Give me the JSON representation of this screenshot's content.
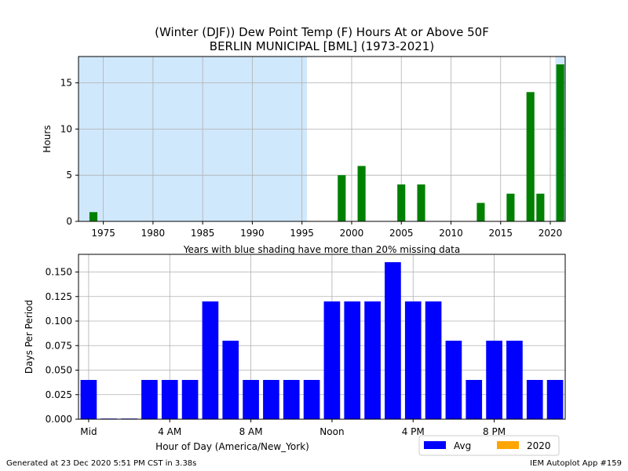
{
  "title": {
    "line1": "(Winter (DJF)) Dew Point Temp (F) Hours At or Above 50F",
    "line2": "BERLIN MUNICIPAL [BML] (1973-2021)"
  },
  "chart_data": [
    {
      "type": "bar",
      "title": "(Winter (DJF)) Dew Point Temp (F) Hours At or Above 50F / BERLIN MUNICIPAL [BML] (1973-2021)",
      "xlabel": "Years with blue shading have more than 20% missing data",
      "ylabel": "Hours",
      "xlim": [
        1972.5,
        2021.5
      ],
      "ylim": [
        0,
        17.85
      ],
      "xticks": [
        1975,
        1980,
        1985,
        1990,
        1995,
        2000,
        2005,
        2010,
        2015,
        2020
      ],
      "yticks": [
        0,
        5,
        10,
        15
      ],
      "grid": true,
      "bar_color": "#008000",
      "shade_color": "#d0e8fc",
      "missing_data_shading": [
        [
          1972.5,
          1995.5
        ],
        [
          2020.5,
          2021.5
        ]
      ],
      "x": [
        1974,
        1999,
        2001,
        2005,
        2007,
        2013,
        2016,
        2018,
        2019,
        2021
      ],
      "values": [
        1,
        5,
        6,
        4,
        4,
        2,
        3,
        14,
        3,
        17
      ]
    },
    {
      "type": "bar",
      "xlabel": "Hour of Day (America/New_York)",
      "ylabel": "Days Per Period",
      "xlim": [
        -0.5,
        23.5
      ],
      "ylim": [
        0,
        0.168
      ],
      "xticks": [
        {
          "pos": 0,
          "label": "Mid"
        },
        {
          "pos": 4,
          "label": "4 AM"
        },
        {
          "pos": 8,
          "label": "8 AM"
        },
        {
          "pos": 12,
          "label": "Noon"
        },
        {
          "pos": 16,
          "label": "4 PM"
        },
        {
          "pos": 20,
          "label": "8 PM"
        }
      ],
      "yticks": [
        "0.000",
        "0.025",
        "0.050",
        "0.075",
        "0.100",
        "0.125",
        "0.150"
      ],
      "grid": true,
      "legend_position": "lower-right",
      "series": [
        {
          "name": "Avg",
          "color": "#0000ff",
          "x": [
            0,
            1,
            2,
            3,
            4,
            5,
            6,
            7,
            8,
            9,
            10,
            11,
            12,
            13,
            14,
            15,
            16,
            17,
            18,
            19,
            20,
            21,
            22,
            23
          ],
          "values": [
            0.04,
            0,
            0,
            0.04,
            0.04,
            0.04,
            0.12,
            0.08,
            0.04,
            0.04,
            0.04,
            0.04,
            0.12,
            0.12,
            0.12,
            0.16,
            0.12,
            0.12,
            0.08,
            0.04,
            0.08,
            0.08,
            0.04,
            0.04
          ]
        },
        {
          "name": "2020",
          "color": "#ffa500",
          "x": [],
          "values": []
        }
      ]
    }
  ],
  "footer": {
    "left": "Generated at 23 Dec 2020 5:51 PM CST in 3.38s",
    "right": "IEM Autoplot App #159"
  }
}
